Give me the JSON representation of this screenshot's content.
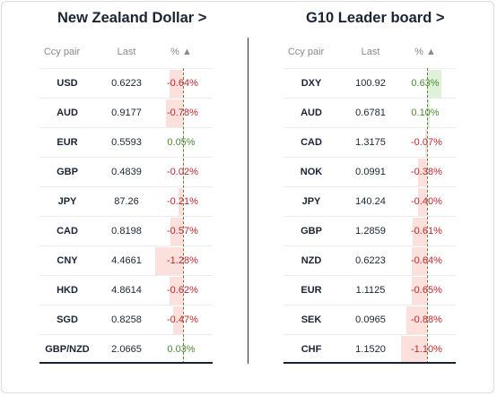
{
  "left_panel": {
    "title": "New Zealand Dollar >",
    "headers": {
      "pair": "Ccy pair",
      "last": "Last",
      "pct": "% ▲"
    },
    "rows": [
      {
        "pair": "USD",
        "last": "0.6223",
        "pct": "-0.64%",
        "value": -0.64
      },
      {
        "pair": "AUD",
        "last": "0.9177",
        "pct": "-0.78%",
        "value": -0.78
      },
      {
        "pair": "EUR",
        "last": "0.5593",
        "pct": "0.05%",
        "value": 0.05
      },
      {
        "pair": "GBP",
        "last": "0.4839",
        "pct": "-0.02%",
        "value": -0.02
      },
      {
        "pair": "JPY",
        "last": "87.26",
        "pct": "-0.21%",
        "value": -0.21
      },
      {
        "pair": "CAD",
        "last": "0.8198",
        "pct": "-0.57%",
        "value": -0.57
      },
      {
        "pair": "CNY",
        "last": "4.4661",
        "pct": "-1.28%",
        "value": -1.28
      },
      {
        "pair": "HKD",
        "last": "4.8614",
        "pct": "-0.62%",
        "value": -0.62
      },
      {
        "pair": "SGD",
        "last": "0.8258",
        "pct": "-0.47%",
        "value": -0.47
      },
      {
        "pair": "GBP/NZD",
        "last": "2.0665",
        "pct": "0.03%",
        "value": 0.03
      }
    ]
  },
  "right_panel": {
    "title": "G10 Leader board >",
    "headers": {
      "pair": "Ccy pair",
      "last": "Last",
      "pct": "% ▲"
    },
    "rows": [
      {
        "pair": "DXY",
        "last": "100.92",
        "pct": "0.63%",
        "value": 0.63
      },
      {
        "pair": "AUD",
        "last": "0.6781",
        "pct": "0.10%",
        "value": 0.1
      },
      {
        "pair": "CAD",
        "last": "1.3175",
        "pct": "-0.07%",
        "value": -0.07
      },
      {
        "pair": "NOK",
        "last": "0.0991",
        "pct": "-0.38%",
        "value": -0.38
      },
      {
        "pair": "JPY",
        "last": "140.24",
        "pct": "-0.40%",
        "value": -0.4
      },
      {
        "pair": "GBP",
        "last": "1.2859",
        "pct": "-0.61%",
        "value": -0.61
      },
      {
        "pair": "NZD",
        "last": "0.6223",
        "pct": "-0.64%",
        "value": -0.64
      },
      {
        "pair": "EUR",
        "last": "1.1125",
        "pct": "-0.65%",
        "value": -0.65
      },
      {
        "pair": "SEK",
        "last": "0.0965",
        "pct": "-0.88%",
        "value": -0.88
      },
      {
        "pair": "CHF",
        "last": "1.1520",
        "pct": "-1.10%",
        "value": -1.1
      }
    ]
  },
  "colors": {
    "positive_text": "#4a8d34",
    "negative_text": "#c0282c",
    "positive_bar": "#dff1da",
    "negative_bar": "#fbe0dc"
  }
}
